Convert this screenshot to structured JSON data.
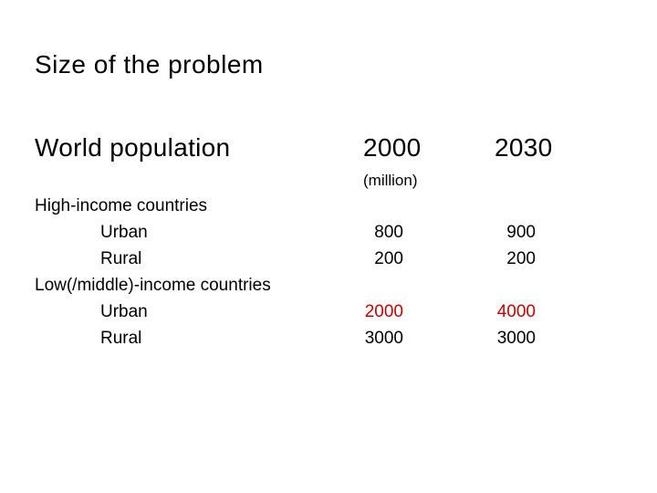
{
  "title": "Size of the problem",
  "header": {
    "label": "World population",
    "col_2000": "2000",
    "col_2030": "2030",
    "unit": "(million)"
  },
  "rows": [
    {
      "label": "High-income countries",
      "v2000": "",
      "v2030": ""
    },
    {
      "label": "Urban",
      "v2000": "800",
      "v2030": "900"
    },
    {
      "label": "Rural",
      "v2000": "200",
      "v2030": "200"
    },
    {
      "label": "Low(/middle)-income countries",
      "v2000": "",
      "v2030": ""
    },
    {
      "label": "Urban",
      "v2000": "2000",
      "v2030": "4000"
    },
    {
      "label": "Rural",
      "v2000": "3000",
      "v2030": "3000"
    }
  ],
  "colors": {
    "text": "#000000",
    "highlight": "#cc0000",
    "background": "#ffffff"
  }
}
